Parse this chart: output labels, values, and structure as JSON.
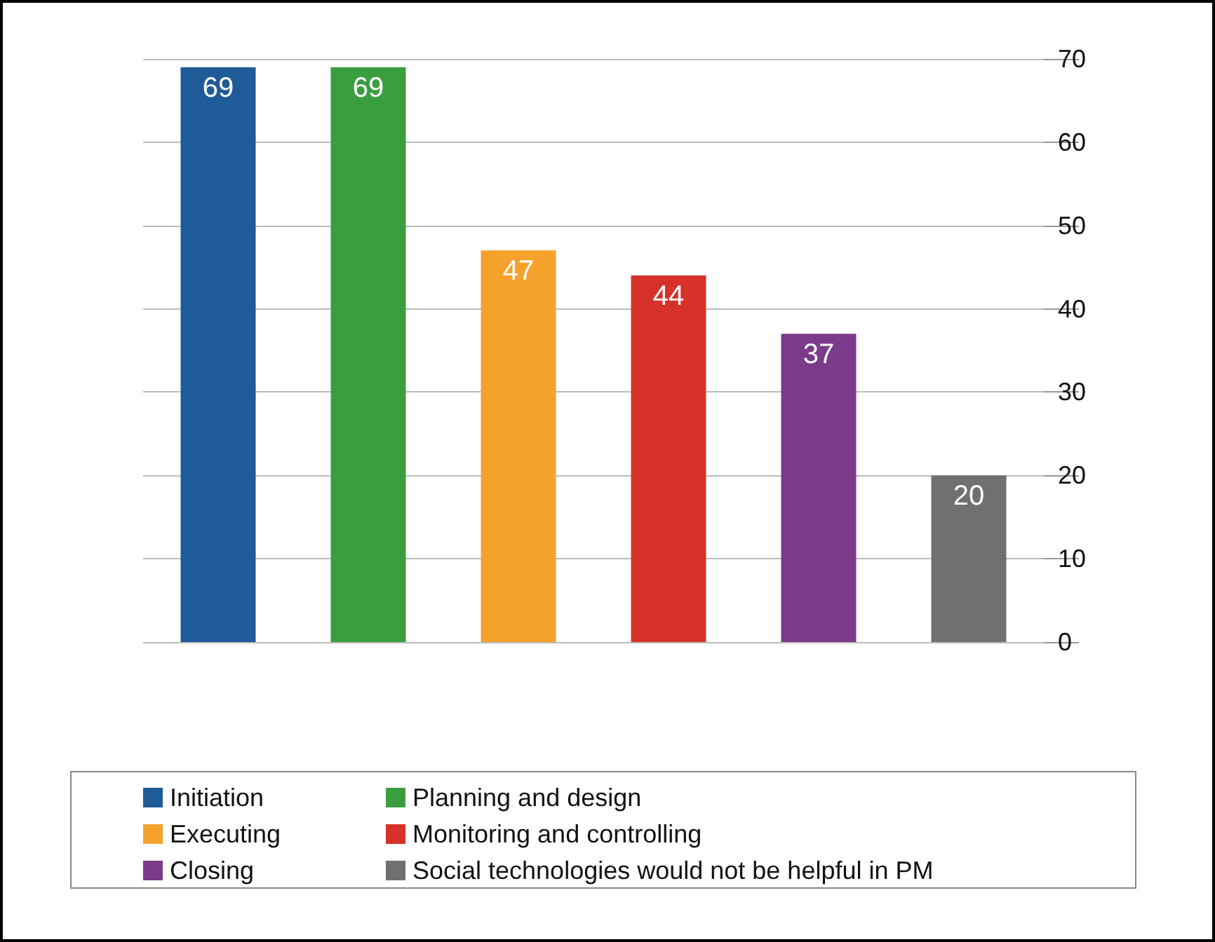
{
  "chart_data": {
    "type": "bar",
    "categories": [
      null,
      null,
      null,
      null,
      null,
      null
    ],
    "series": [
      {
        "name": "Initiation",
        "color": "#1f5a99",
        "values": [
          69,
          null,
          null,
          null,
          null,
          null
        ]
      },
      {
        "name": "Planning and design",
        "color": "#3a9e3f",
        "values": [
          null,
          69,
          null,
          null,
          null,
          null
        ]
      },
      {
        "name": "Executing",
        "color": "#f5a22c",
        "values": [
          null,
          null,
          47,
          null,
          null,
          null
        ]
      },
      {
        "name": "Monitoring and controlling",
        "color": "#d6322a",
        "values": [
          null,
          null,
          null,
          44,
          null,
          null
        ]
      },
      {
        "name": "Closing",
        "color": "#7b3a8a",
        "values": [
          null,
          null,
          null,
          null,
          37,
          null
        ]
      },
      {
        "name": "Social technologies would not be helpful in PM",
        "color": "#707070",
        "values": [
          null,
          null,
          null,
          null,
          null,
          20
        ]
      }
    ],
    "ylim": [
      0,
      70
    ],
    "yticks": [
      0,
      10,
      20,
      30,
      40,
      50,
      60,
      70
    ],
    "grid": "y",
    "data_labels": true,
    "legend": "bottom"
  }
}
